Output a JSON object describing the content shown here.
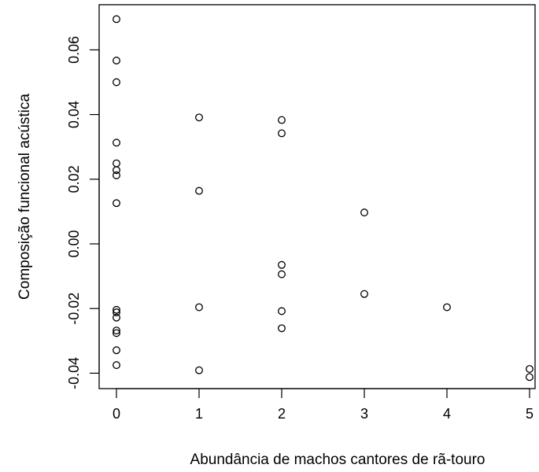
{
  "chart_data": {
    "type": "scatter",
    "xlabel": "Abundância de machos cantores de rã-touro",
    "ylabel": "Composição funcional acústica",
    "xlim": [
      0,
      5
    ],
    "ylim": [
      -0.045,
      0.07
    ],
    "x_ticks": [
      0,
      1,
      2,
      3,
      4,
      5
    ],
    "x_tick_labels": [
      "0",
      "1",
      "2",
      "3",
      "4",
      "5"
    ],
    "y_ticks": [
      -0.04,
      -0.02,
      0.0,
      0.02,
      0.04,
      0.06
    ],
    "y_tick_labels": [
      "-0.04",
      "-0.02",
      "0.00",
      "0.02",
      "0.04",
      "0.06"
    ],
    "grid": false,
    "legend": "none",
    "marker": "open-circle",
    "points": [
      {
        "x": 0,
        "y": 0.0695
      },
      {
        "x": 0,
        "y": 0.0567
      },
      {
        "x": 0,
        "y": 0.05
      },
      {
        "x": 0,
        "y": 0.0313
      },
      {
        "x": 0,
        "y": 0.0249
      },
      {
        "x": 0,
        "y": 0.0228
      },
      {
        "x": 0,
        "y": 0.0212
      },
      {
        "x": 0,
        "y": 0.0126
      },
      {
        "x": 0,
        "y": -0.0204
      },
      {
        "x": 0,
        "y": -0.0212
      },
      {
        "x": 0,
        "y": -0.0228
      },
      {
        "x": 0,
        "y": -0.0268
      },
      {
        "x": 0,
        "y": -0.0276
      },
      {
        "x": 0,
        "y": -0.0329
      },
      {
        "x": 0,
        "y": -0.0375
      },
      {
        "x": 1,
        "y": 0.0391
      },
      {
        "x": 1,
        "y": 0.0164
      },
      {
        "x": 1,
        "y": -0.0196
      },
      {
        "x": 1,
        "y": -0.0391
      },
      {
        "x": 2,
        "y": 0.0383
      },
      {
        "x": 2,
        "y": 0.0342
      },
      {
        "x": 2,
        "y": -0.0065
      },
      {
        "x": 2,
        "y": -0.0094
      },
      {
        "x": 2,
        "y": -0.0208
      },
      {
        "x": 2,
        "y": -0.0261
      },
      {
        "x": 3,
        "y": 0.0097
      },
      {
        "x": 3,
        "y": -0.0155
      },
      {
        "x": 4,
        "y": -0.0196
      },
      {
        "x": 5,
        "y": -0.0387
      },
      {
        "x": 5,
        "y": -0.0412
      }
    ]
  }
}
